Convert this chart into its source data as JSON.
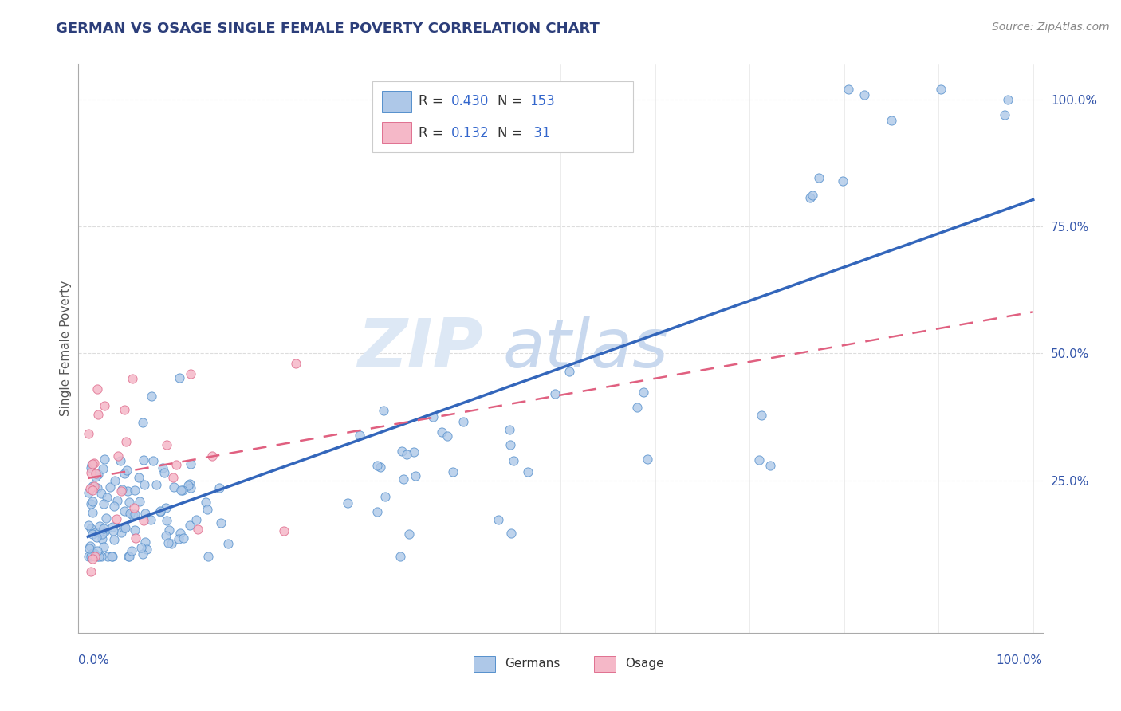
{
  "title": "GERMAN VS OSAGE SINGLE FEMALE POVERTY CORRELATION CHART",
  "source_text": "Source: ZipAtlas.com",
  "ylabel": "Single Female Poverty",
  "blue_fill": "#aec8e8",
  "blue_edge": "#5590cc",
  "pink_fill": "#f5b8c8",
  "pink_edge": "#e07090",
  "blue_line": "#3366bb",
  "pink_line": "#e06080",
  "title_color": "#2c3e7a",
  "label_color": "#3355aa",
  "grid_color": "#dddddd",
  "legend_value_color": "#3366cc",
  "legend_label_color": "#333333"
}
